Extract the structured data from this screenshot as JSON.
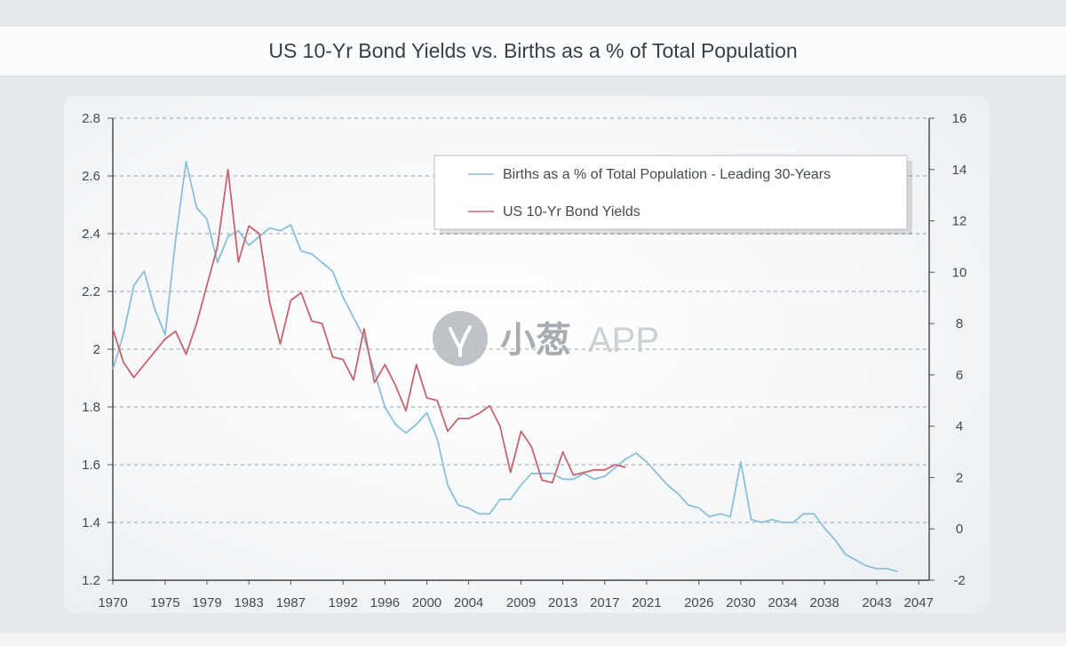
{
  "chart_data": {
    "type": "line",
    "title": "US 10-Yr Bond Yields vs. Births as a % of Total Population",
    "x_tick_labels": [
      "1970",
      "1975",
      "1979",
      "1983",
      "1987",
      "1992",
      "1996",
      "2000",
      "2004",
      "2009",
      "2013",
      "2017",
      "2021",
      "2026",
      "2030",
      "2034",
      "2038",
      "2043",
      "2047"
    ],
    "x_range": [
      1970,
      2048
    ],
    "y_left": {
      "range": [
        1.2,
        2.8
      ],
      "ticks": [
        "1.2",
        "1.4",
        "1.6",
        "1.8",
        "2",
        "2.2",
        "2.4",
        "2.6",
        "2.8"
      ]
    },
    "y_right": {
      "range": [
        -2,
        16
      ],
      "ticks": [
        "-2",
        "0",
        "2",
        "4",
        "6",
        "8",
        "10",
        "12",
        "14",
        "16"
      ]
    },
    "grid": true,
    "legend_position": "top-right",
    "series": [
      {
        "name": "Births as a % of Total Population - Leading 30-Years",
        "axis": "left",
        "color": "#8cc0d8",
        "x": [
          1970,
          1971,
          1972,
          1973,
          1974,
          1975,
          1976,
          1977,
          1978,
          1979,
          1980,
          1981,
          1982,
          1983,
          1984,
          1985,
          1986,
          1987,
          1988,
          1989,
          1990,
          1991,
          1992,
          1993,
          1994,
          1995,
          1996,
          1997,
          1998,
          1999,
          2000,
          2001,
          2002,
          2003,
          2004,
          2005,
          2006,
          2007,
          2008,
          2009,
          2010,
          2011,
          2012,
          2013,
          2014,
          2015,
          2016,
          2017,
          2018,
          2019,
          2020,
          2021,
          2022,
          2023,
          2024,
          2025,
          2026,
          2027,
          2028,
          2029,
          2030,
          2031,
          2032,
          2033,
          2034,
          2035,
          2036,
          2037,
          2038,
          2039,
          2040,
          2041,
          2042,
          2043,
          2044,
          2045
        ],
        "values": [
          1.93,
          2.05,
          2.22,
          2.27,
          2.14,
          2.05,
          2.38,
          2.65,
          2.49,
          2.45,
          2.3,
          2.39,
          2.41,
          2.36,
          2.39,
          2.42,
          2.41,
          2.43,
          2.34,
          2.33,
          2.3,
          2.27,
          2.18,
          2.11,
          2.04,
          1.92,
          1.8,
          1.74,
          1.71,
          1.74,
          1.78,
          1.69,
          1.53,
          1.46,
          1.45,
          1.43,
          1.43,
          1.48,
          1.48,
          1.53,
          1.57,
          1.57,
          1.57,
          1.55,
          1.55,
          1.57,
          1.55,
          1.56,
          1.59,
          1.62,
          1.64,
          1.61,
          1.57,
          1.53,
          1.5,
          1.46,
          1.45,
          1.42,
          1.43,
          1.42,
          1.61,
          1.41,
          1.4,
          1.41,
          1.4,
          1.4,
          1.43,
          1.43,
          1.38,
          1.34,
          1.29,
          1.27,
          1.25,
          1.24,
          1.24,
          1.23
        ]
      },
      {
        "name": "US 10-Yr Bond Yields",
        "axis": "right",
        "color": "#c8646e",
        "x": [
          1970,
          1971,
          1972,
          1973,
          1974,
          1975,
          1976,
          1977,
          1978,
          1979,
          1980,
          1981,
          1982,
          1983,
          1984,
          1985,
          1986,
          1987,
          1988,
          1989,
          1990,
          1991,
          1992,
          1993,
          1994,
          1995,
          1996,
          1997,
          1998,
          1999,
          2000,
          2001,
          2002,
          2003,
          2004,
          2005,
          2006,
          2007,
          2008,
          2009,
          2010,
          2011,
          2012,
          2013,
          2014,
          2015,
          2016,
          2017,
          2018,
          2019
        ],
        "values": [
          7.8,
          6.5,
          5.9,
          6.4,
          6.9,
          7.4,
          7.7,
          6.8,
          8.0,
          9.5,
          11.0,
          14.0,
          10.4,
          11.8,
          11.5,
          8.8,
          7.2,
          8.9,
          9.2,
          8.1,
          8.0,
          6.7,
          6.6,
          5.8,
          7.8,
          5.7,
          6.4,
          5.6,
          4.6,
          6.4,
          5.1,
          5.0,
          3.8,
          4.3,
          4.3,
          4.5,
          4.8,
          4.0,
          2.2,
          3.8,
          3.2,
          1.9,
          1.8,
          3.0,
          2.1,
          2.2,
          2.3,
          2.3,
          2.5,
          2.4
        ]
      }
    ]
  },
  "watermark": {
    "brand": "小葱",
    "suffix": "APP"
  }
}
